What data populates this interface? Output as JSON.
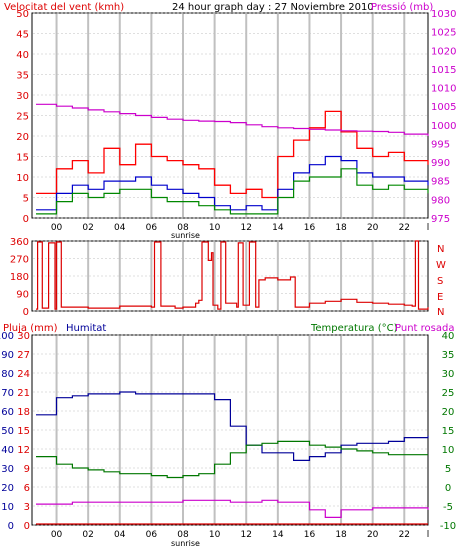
{
  "colors": {
    "wind_axis": "#dd0000",
    "pressure_axis": "#cc00cc",
    "gust": "#ff0000",
    "speed_avg": "#0000cc",
    "speed": "#008800",
    "direction": "#dd0000",
    "humidity": "#000099",
    "temperature": "#007700",
    "dewpoint": "#cc00cc",
    "rain": "#dd0000",
    "grid": "#c0c0c0",
    "frame": "#000000"
  },
  "chart_data": [
    {
      "type": "line",
      "id": "wind",
      "title": "24 hour graph day : 27 Noviembre 2010",
      "ylabel_left": "Velocitat del vent (kmh)",
      "ylabel_right": "Pressió (mb)",
      "x_ticks": [
        "00",
        "02",
        "04",
        "06",
        "08",
        "10",
        "12",
        "14",
        "16",
        "18",
        "20",
        "22",
        "l"
      ],
      "sunrise_label": "sunrise",
      "ylim": [
        0,
        50
      ],
      "yticks": [
        "0",
        "5",
        "10",
        "15",
        "20",
        "25",
        "30",
        "35",
        "40",
        "45",
        "50"
      ],
      "y2lim": [
        975,
        1030
      ],
      "y2ticks": [
        "975",
        "980",
        "985",
        "990",
        "995",
        "1000",
        "1005",
        "1010",
        "1015",
        "1020",
        "1025",
        "1030"
      ],
      "x_hours": [
        -1.3,
        0,
        1,
        2,
        3,
        4,
        5,
        6,
        7,
        8,
        9,
        10,
        11,
        12,
        13,
        14,
        15,
        16,
        17,
        18,
        19,
        20,
        21,
        22,
        23.5
      ],
      "series": [
        {
          "key": "gust",
          "values": [
            6,
            12,
            14,
            11,
            17,
            13,
            18,
            15,
            14,
            13,
            12,
            8,
            6,
            7,
            5,
            15,
            19,
            22,
            26,
            21,
            17,
            15,
            16,
            14,
            13
          ]
        },
        {
          "key": "speed_avg",
          "values": [
            2,
            6,
            8,
            7,
            9,
            9,
            10,
            8,
            7,
            6,
            5,
            3,
            2,
            3,
            2,
            7,
            11,
            13,
            15,
            14,
            11,
            10,
            10,
            9,
            8
          ]
        },
        {
          "key": "speed",
          "values": [
            1,
            4,
            6,
            5,
            6,
            7,
            7,
            5,
            4,
            4,
            3,
            2,
            1,
            1,
            1,
            5,
            9,
            10,
            10,
            12,
            8,
            7,
            8,
            7,
            6
          ]
        },
        {
          "key": "pressure",
          "y_axis": "right",
          "values": [
            1005.5,
            1005.0,
            1004.5,
            1004.0,
            1003.5,
            1003.0,
            1002.5,
            1002.0,
            1001.5,
            1001.2,
            1001.0,
            1000.9,
            1000.6,
            1000.0,
            999.5,
            999.2,
            999.0,
            998.8,
            998.6,
            998.4,
            998.3,
            998.2,
            998.0,
            997.5,
            997.0
          ]
        }
      ]
    },
    {
      "type": "line",
      "id": "direction",
      "ylim": [
        0,
        360
      ],
      "yticks": [
        "0",
        "90",
        "180",
        "270",
        "360"
      ],
      "compass": [
        "N",
        "W",
        "S",
        "E",
        "N"
      ],
      "points": [
        [
          -1.3,
          10
        ],
        [
          -1.2,
          355
        ],
        [
          -1.0,
          355
        ],
        [
          -0.9,
          15
        ],
        [
          -0.6,
          15
        ],
        [
          -0.5,
          350
        ],
        [
          -0.2,
          350
        ],
        [
          -0.1,
          10
        ],
        [
          0.0,
          355
        ],
        [
          0.2,
          355
        ],
        [
          0.3,
          20
        ],
        [
          2.0,
          15
        ],
        [
          4.0,
          25
        ],
        [
          6.0,
          20
        ],
        [
          6.2,
          355
        ],
        [
          6.5,
          355
        ],
        [
          6.6,
          25
        ],
        [
          7.5,
          15
        ],
        [
          8.0,
          20
        ],
        [
          8.5,
          20
        ],
        [
          8.8,
          40
        ],
        [
          9.0,
          55
        ],
        [
          9.2,
          355
        ],
        [
          9.5,
          355
        ],
        [
          9.6,
          260
        ],
        [
          9.8,
          300
        ],
        [
          9.9,
          30
        ],
        [
          10.2,
          10
        ],
        [
          10.4,
          355
        ],
        [
          10.6,
          355
        ],
        [
          10.7,
          40
        ],
        [
          11.2,
          40
        ],
        [
          11.4,
          20
        ],
        [
          11.5,
          350
        ],
        [
          11.7,
          350
        ],
        [
          11.8,
          30
        ],
        [
          12.1,
          30
        ],
        [
          12.2,
          355
        ],
        [
          12.5,
          355
        ],
        [
          12.6,
          20
        ],
        [
          12.8,
          160
        ],
        [
          13.2,
          170
        ],
        [
          14.0,
          160
        ],
        [
          14.8,
          175
        ],
        [
          15.0,
          175
        ],
        [
          15.1,
          20
        ],
        [
          16.0,
          40
        ],
        [
          17.0,
          50
        ],
        [
          18.0,
          60
        ],
        [
          19.0,
          45
        ],
        [
          20.0,
          40
        ],
        [
          21.0,
          35
        ],
        [
          22.0,
          30
        ],
        [
          22.5,
          25
        ],
        [
          22.7,
          360
        ],
        [
          22.9,
          10
        ],
        [
          23.5,
          20
        ]
      ]
    },
    {
      "type": "line",
      "id": "climate",
      "ylabel_left": "Pluja (mm)",
      "ylabel_humidity": "Humitat",
      "ylabel_right": "Temperatura (°C)",
      "ylabel_right2": "Punt rosada",
      "x_ticks": [
        "00",
        "02",
        "04",
        "06",
        "08",
        "10",
        "12",
        "14",
        "16",
        "18",
        "20",
        "22",
        "l"
      ],
      "sunrise_label": "sunrise",
      "rain_lim": [
        0,
        30
      ],
      "rain_ticks": [
        "0",
        "3",
        "6",
        "9",
        "12",
        "15",
        "18",
        "21",
        "24",
        "27",
        "30"
      ],
      "humidity_lim": [
        0,
        100
      ],
      "humidity_ticks": [
        "0",
        "10",
        "20",
        "30",
        "40",
        "50",
        "60",
        "70",
        "80",
        "90",
        "100"
      ],
      "temp_lim": [
        -10,
        40
      ],
      "temp_ticks": [
        "-10",
        "-5",
        "0",
        "5",
        "10",
        "15",
        "20",
        "25",
        "30",
        "35",
        "40"
      ],
      "x_hours": [
        -1.3,
        0,
        1,
        2,
        3,
        4,
        5,
        6,
        7,
        8,
        9,
        10,
        11,
        12,
        13,
        14,
        15,
        16,
        17,
        18,
        19,
        20,
        21,
        22,
        23.5
      ],
      "series": [
        {
          "key": "humidity",
          "values": [
            58,
            67,
            68,
            69,
            69,
            70,
            69,
            69,
            69,
            69,
            69,
            66,
            52,
            42,
            38,
            38,
            34,
            36,
            38,
            42,
            43,
            43,
            44,
            46,
            47
          ]
        },
        {
          "key": "temperature",
          "values": [
            8,
            6,
            5,
            4.5,
            4,
            3.5,
            3.5,
            3,
            2.5,
            3,
            3.5,
            6,
            9,
            11,
            11.5,
            12,
            12,
            11,
            10.5,
            10,
            9.5,
            9,
            8.5,
            8.5,
            8.5
          ]
        },
        {
          "key": "dewpoint",
          "values": [
            -4.5,
            -4.5,
            -4,
            -4,
            -4,
            -4,
            -4,
            -4,
            -4,
            -3.5,
            -3.5,
            -3.5,
            -4,
            -4,
            -3.5,
            -4,
            -4,
            -6,
            -8,
            -6,
            -6,
            -5.5,
            -5.5,
            -5.5,
            -6
          ]
        },
        {
          "key": "rain",
          "values": [
            0,
            0,
            0,
            0,
            0,
            0,
            0,
            0,
            0,
            0,
            0,
            0,
            0,
            0,
            0,
            0,
            0,
            0,
            0,
            0,
            0,
            0,
            0,
            0,
            0
          ]
        }
      ]
    }
  ]
}
